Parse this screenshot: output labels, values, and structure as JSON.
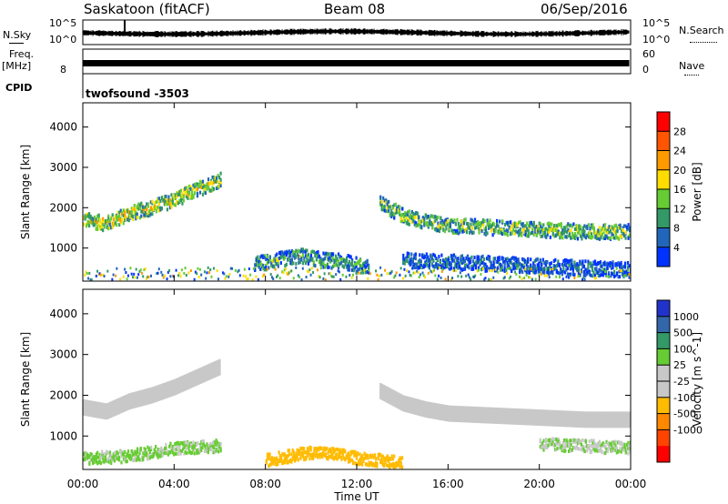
{
  "header": {
    "site": "Saskatoon (fitACF)",
    "beam": "Beam 08",
    "date": "06/Sep/2016"
  },
  "side_labels": {
    "nsky": "N.Sky",
    "freq": "Freq.",
    "freq_unit": "[MHz]",
    "cpid": "CPID",
    "nsearch": "N.Search",
    "nave": "Nave"
  },
  "small_ticks": {
    "nsky_top": "10^5",
    "nsky_bottom": "10^0",
    "freq_top": "",
    "freq_bottom": "8",
    "nsearch_top": "10^5",
    "nsearch_bottom": "10^0",
    "nave_top": "60",
    "nave_bottom": "0"
  },
  "cpid_text": "twofsound -3503",
  "time_axis": {
    "label": "Time UT",
    "ticks": [
      "00:00",
      "04:00",
      "08:00",
      "12:00",
      "16:00",
      "20:00",
      "00:00"
    ]
  },
  "colors": {
    "power": [
      "#0033ff",
      "#2266bb",
      "#339966",
      "#66cc33",
      "#ffdd00",
      "#ff9900",
      "#ff5500",
      "#ff0000"
    ],
    "velocity": [
      "#2233cc",
      "#3366aa",
      "#339966",
      "#66cc33",
      "#c8c8c8",
      "#c8c8c8",
      "#ffbb00",
      "#ff8800",
      "#ff4400",
      "#ff0000"
    ],
    "ground": "#c8c8c8"
  },
  "chart_data": [
    {
      "type": "heatmap",
      "title": "",
      "xlabel": "Time UT",
      "ylabel": "Slant Range [km]",
      "xlim": [
        0,
        24
      ],
      "ylim": [
        180,
        4600
      ],
      "yticks": [
        1000,
        2000,
        3000,
        4000
      ],
      "colorbar": {
        "label": "Power [dB]",
        "ticks": [
          "4",
          "8",
          "12",
          "16",
          "20",
          "24",
          "28"
        ],
        "range": [
          0,
          32
        ]
      },
      "echo_bands": [
        {
          "t": [
            0.0,
            1.0,
            2.0,
            3.0,
            4.0,
            5.0,
            6.0
          ],
          "range_km": [
            1700,
            1600,
            1850,
            2000,
            2200,
            2450,
            2700
          ],
          "level": 16
        },
        {
          "t": [
            13.0,
            14.0,
            15.0,
            16.0,
            18.0,
            20.0,
            22.0,
            24.0
          ],
          "range_km": [
            2100,
            1800,
            1650,
            1550,
            1500,
            1450,
            1400,
            1400
          ],
          "level": 13
        },
        {
          "t": [
            7.5,
            8.5,
            9.5,
            10.5,
            11.5,
            12.5
          ],
          "range_km": [
            600,
            700,
            800,
            700,
            650,
            500
          ],
          "level": 10
        },
        {
          "t": [
            14.0,
            16.0,
            18.0,
            20.0,
            22.0,
            24.0
          ],
          "range_km": [
            700,
            650,
            600,
            550,
            500,
            450
          ],
          "level": 6
        }
      ]
    },
    {
      "type": "heatmap",
      "title": "",
      "xlabel": "Time UT",
      "ylabel": "Slant Range [km]",
      "xlim": [
        0,
        24
      ],
      "ylim": [
        180,
        4600
      ],
      "yticks": [
        1000,
        2000,
        3000,
        4000
      ],
      "colorbar": {
        "label": "Velocity [m s^-1]",
        "ticks": [
          "1000",
          "500",
          "100",
          "25",
          "-25",
          "-100",
          "-500",
          "-1000"
        ],
        "range": [
          -1250,
          1250
        ]
      },
      "ground_scatter_bands": [
        {
          "t": [
            0.0,
            1.0,
            2.0,
            3.0,
            4.0,
            5.0,
            6.0
          ],
          "range_km": [
            1700,
            1600,
            1850,
            2000,
            2200,
            2450,
            2700
          ]
        },
        {
          "t": [
            13.0,
            14.0,
            15.0,
            16.0,
            18.0,
            20.0,
            22.0,
            24.0
          ],
          "range_km": [
            2100,
            1800,
            1650,
            1550,
            1500,
            1450,
            1400,
            1400
          ]
        }
      ],
      "ionospheric_patches": [
        {
          "t": [
            8.0,
            9.0,
            10.0,
            11.0,
            12.0,
            13.0,
            14.0
          ],
          "range_km": [
            400,
            500,
            600,
            550,
            450,
            400,
            350
          ],
          "velocity": -150
        },
        {
          "t": [
            0.0,
            2.0,
            4.0,
            6.0
          ],
          "range_km": [
            450,
            500,
            700,
            750
          ],
          "velocity": 80
        },
        {
          "t": [
            20.0,
            22.0,
            24.0
          ],
          "range_km": [
            800,
            750,
            700
          ],
          "velocity": 60
        }
      ]
    }
  ]
}
